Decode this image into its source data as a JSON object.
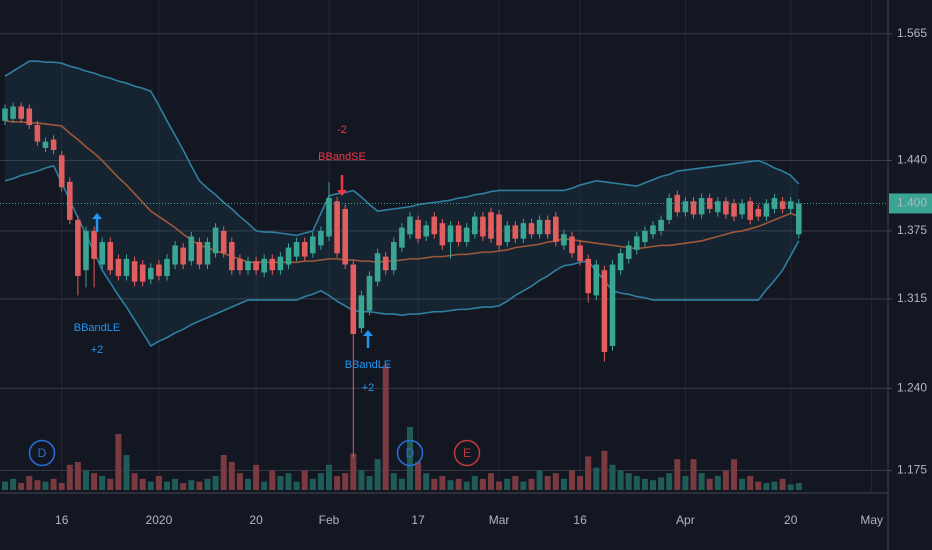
{
  "chart_data": {
    "type": "candlestick",
    "log_scale": true,
    "grid": true,
    "ylim": [
      1.16,
      1.6
    ],
    "yticks": [
      1.175,
      {
        "value": 1.24,
        "label": "1.240"
      },
      1.315,
      1.375,
      {
        "value": 1.44,
        "label": "1.440"
      },
      1.565
    ],
    "y2lim": [
      0,
      100
    ],
    "last_price": {
      "value": 1.4,
      "label": "1.400"
    },
    "up_color": "#3aa592",
    "down_color": "#e25d5d",
    "volume_up_color": "#1f5b57",
    "volume_down_color": "#7a3a40",
    "band_color": "#2f7fa0",
    "basis_color": "#a0583a",
    "categories": [
      null,
      null,
      null,
      null,
      null,
      null,
      null,
      "16",
      null,
      null,
      null,
      null,
      null,
      null,
      null,
      null,
      null,
      null,
      null,
      "2020",
      null,
      null,
      null,
      null,
      null,
      null,
      null,
      null,
      null,
      null,
      null,
      "20",
      null,
      null,
      null,
      null,
      null,
      null,
      null,
      null,
      "Feb",
      null,
      null,
      null,
      null,
      null,
      null,
      null,
      null,
      null,
      null,
      "17",
      null,
      null,
      null,
      null,
      null,
      null,
      null,
      null,
      null,
      "Mar",
      null,
      null,
      null,
      null,
      null,
      null,
      null,
      null,
      null,
      "16",
      null,
      null,
      null,
      null,
      null,
      null,
      null,
      null,
      null,
      null,
      null,
      null,
      "Apr",
      null,
      null,
      null,
      null,
      null,
      null,
      null,
      null,
      null,
      null,
      null,
      null,
      "20",
      null,
      null,
      null,
      null,
      null,
      null,
      null,
      null,
      null,
      "May"
    ],
    "open": [
      1.478,
      1.48,
      1.492,
      1.49,
      1.474,
      1.452,
      1.46,
      1.445,
      1.42,
      1.385,
      1.34,
      1.375,
      1.345,
      1.365,
      1.35,
      1.335,
      1.348,
      1.345,
      1.332,
      1.345,
      1.335,
      1.345,
      1.36,
      1.348,
      1.365,
      1.345,
      1.355,
      1.375,
      1.365,
      1.35,
      1.34,
      1.348,
      1.338,
      1.35,
      1.34,
      1.345,
      1.352,
      1.365,
      1.355,
      1.362,
      1.37,
      1.402,
      1.395,
      1.345,
      1.29,
      1.305,
      1.33,
      1.352,
      1.34,
      1.36,
      1.372,
      1.385,
      1.37,
      1.388,
      1.382,
      1.365,
      1.38,
      1.365,
      1.372,
      1.388,
      1.392,
      1.39,
      1.365,
      1.38,
      1.368,
      1.382,
      1.372,
      1.385,
      1.388,
      1.362,
      1.37,
      1.362,
      1.35,
      1.318,
      1.34,
      1.275,
      1.34,
      1.35,
      1.358,
      1.365,
      1.372,
      1.375,
      1.385,
      1.408,
      1.392,
      1.402,
      1.39,
      1.405,
      1.392,
      1.402,
      1.4,
      1.39,
      1.402,
      1.395,
      1.388,
      1.395,
      1.402,
      1.395,
      1.372,
      null,
      null,
      null,
      null,
      null,
      null,
      null,
      null,
      null
    ],
    "high": [
      1.494,
      1.496,
      1.496,
      1.494,
      1.478,
      1.462,
      1.464,
      1.449,
      1.424,
      1.389,
      1.379,
      1.379,
      1.369,
      1.369,
      1.354,
      1.354,
      1.352,
      1.349,
      1.346,
      1.349,
      1.354,
      1.366,
      1.364,
      1.374,
      1.369,
      1.369,
      1.382,
      1.379,
      1.369,
      1.354,
      1.352,
      1.352,
      1.354,
      1.354,
      1.356,
      1.364,
      1.369,
      1.369,
      1.374,
      1.379,
      1.42,
      1.406,
      1.399,
      1.349,
      1.322,
      1.339,
      1.359,
      1.356,
      1.369,
      1.382,
      1.392,
      1.389,
      1.384,
      1.392,
      1.386,
      1.384,
      1.384,
      1.382,
      1.392,
      1.392,
      1.396,
      1.394,
      1.384,
      1.384,
      1.386,
      1.386,
      1.389,
      1.389,
      1.392,
      1.376,
      1.374,
      1.366,
      1.354,
      1.349,
      1.344,
      1.349,
      1.359,
      1.366,
      1.374,
      1.379,
      1.384,
      1.389,
      1.409,
      1.412,
      1.406,
      1.406,
      1.409,
      1.409,
      1.406,
      1.406,
      1.404,
      1.404,
      1.406,
      1.399,
      1.404,
      1.409,
      1.406,
      1.406,
      1.404,
      null,
      null,
      null,
      null,
      null,
      null,
      null,
      null,
      null
    ],
    "low": [
      1.474,
      1.476,
      1.476,
      1.47,
      1.454,
      1.448,
      1.446,
      1.411,
      1.381,
      1.318,
      1.325,
      1.325,
      1.341,
      1.336,
      1.331,
      1.331,
      1.326,
      1.326,
      1.328,
      1.331,
      1.331,
      1.341,
      1.341,
      1.344,
      1.341,
      1.341,
      1.351,
      1.351,
      1.336,
      1.336,
      1.336,
      1.336,
      1.334,
      1.336,
      1.336,
      1.341,
      1.348,
      1.348,
      1.351,
      1.358,
      1.366,
      1.351,
      1.341,
      1.185,
      1.286,
      1.301,
      1.326,
      1.336,
      1.336,
      1.356,
      1.368,
      1.364,
      1.366,
      1.368,
      1.358,
      1.35,
      1.361,
      1.361,
      1.368,
      1.366,
      1.364,
      1.358,
      1.361,
      1.364,
      1.364,
      1.368,
      1.368,
      1.368,
      1.361,
      1.358,
      1.351,
      1.344,
      1.312,
      1.314,
      1.262,
      1.271,
      1.336,
      1.346,
      1.354,
      1.361,
      1.368,
      1.371,
      1.381,
      1.388,
      1.388,
      1.386,
      1.386,
      1.391,
      1.388,
      1.386,
      1.384,
      1.386,
      1.381,
      1.384,
      1.384,
      1.391,
      1.391,
      1.391,
      1.368,
      null,
      null,
      null,
      null,
      null,
      null,
      null,
      null,
      null
    ],
    "close": [
      1.49,
      1.492,
      1.48,
      1.474,
      1.458,
      1.458,
      1.45,
      1.415,
      1.385,
      1.335,
      1.375,
      1.35,
      1.365,
      1.34,
      1.335,
      1.35,
      1.33,
      1.33,
      1.342,
      1.335,
      1.35,
      1.362,
      1.345,
      1.37,
      1.345,
      1.365,
      1.378,
      1.355,
      1.34,
      1.34,
      1.348,
      1.34,
      1.35,
      1.34,
      1.352,
      1.36,
      1.365,
      1.352,
      1.37,
      1.375,
      1.405,
      1.355,
      1.345,
      1.285,
      1.318,
      1.335,
      1.355,
      1.34,
      1.365,
      1.378,
      1.388,
      1.368,
      1.38,
      1.372,
      1.362,
      1.38,
      1.365,
      1.378,
      1.388,
      1.37,
      1.368,
      1.362,
      1.38,
      1.368,
      1.382,
      1.372,
      1.385,
      1.372,
      1.365,
      1.372,
      1.355,
      1.348,
      1.32,
      1.345,
      1.27,
      1.345,
      1.355,
      1.362,
      1.37,
      1.375,
      1.38,
      1.385,
      1.405,
      1.392,
      1.402,
      1.39,
      1.405,
      1.395,
      1.402,
      1.39,
      1.388,
      1.4,
      1.385,
      1.388,
      1.4,
      1.405,
      1.395,
      1.402,
      1.4,
      null,
      null,
      null,
      null,
      null,
      null,
      null,
      null,
      null
    ],
    "volume": [
      6,
      8,
      5,
      10,
      7,
      6,
      8,
      5,
      18,
      20,
      14,
      12,
      10,
      8,
      40,
      25,
      12,
      8,
      6,
      10,
      6,
      8,
      5,
      7,
      6,
      8,
      10,
      25,
      20,
      12,
      8,
      18,
      6,
      14,
      10,
      12,
      6,
      14,
      8,
      12,
      18,
      10,
      12,
      26,
      14,
      10,
      22,
      89,
      12,
      8,
      45,
      20,
      12,
      8,
      10,
      7,
      8,
      6,
      10,
      8,
      12,
      6,
      8,
      10,
      6,
      8,
      14,
      10,
      12,
      8,
      14,
      10,
      24,
      16,
      28,
      18,
      14,
      12,
      10,
      8,
      7,
      9,
      12,
      22,
      10,
      22,
      12,
      8,
      10,
      14,
      22,
      8,
      10,
      6,
      5,
      6,
      8,
      4,
      5,
      null,
      null,
      null,
      null,
      null,
      null,
      null,
      null,
      null
    ],
    "bands": {
      "upper": [
        1.522,
        1.527,
        1.532,
        1.537,
        1.537,
        1.536,
        1.536,
        1.535,
        1.532,
        1.53,
        1.527,
        1.525,
        1.522,
        1.52,
        1.517,
        1.515,
        1.512,
        1.51,
        1.507,
        1.493,
        1.478,
        1.464,
        1.45,
        1.435,
        1.421,
        1.414,
        1.408,
        1.401,
        1.395,
        1.388,
        1.382,
        1.375,
        1.374,
        1.374,
        1.373,
        1.372,
        1.371,
        1.373,
        1.375,
        1.391,
        1.407,
        1.409,
        1.41,
        1.412,
        1.406,
        1.399,
        1.393,
        1.394,
        1.395,
        1.396,
        1.397,
        1.399,
        1.4,
        1.401,
        1.402,
        1.403,
        1.405,
        1.406,
        1.408,
        1.409,
        1.411,
        1.412,
        1.412,
        1.412,
        1.412,
        1.412,
        1.412,
        1.412,
        1.412,
        1.412,
        1.414,
        1.417,
        1.419,
        1.421,
        1.42,
        1.419,
        1.418,
        1.417,
        1.416,
        1.419,
        1.422,
        1.425,
        1.427,
        1.43,
        1.431,
        1.432,
        1.433,
        1.434,
        1.435,
        1.436,
        1.437,
        1.438,
        1.439,
        1.44,
        1.437,
        1.433,
        1.43,
        1.426,
        1.418,
        null,
        null,
        null,
        null,
        null,
        null,
        null,
        null,
        null
      ],
      "basis": [
        1.478,
        1.477,
        1.477,
        1.476,
        1.476,
        1.475,
        1.474,
        1.473,
        1.466,
        1.46,
        1.453,
        1.447,
        1.44,
        1.432,
        1.424,
        1.417,
        1.409,
        1.401,
        1.393,
        1.388,
        1.383,
        1.378,
        1.372,
        1.367,
        1.362,
        1.36,
        1.357,
        1.355,
        1.352,
        1.35,
        1.347,
        1.347,
        1.347,
        1.347,
        1.347,
        1.347,
        1.347,
        1.348,
        1.348,
        1.349,
        1.35,
        1.35,
        1.349,
        1.349,
        1.348,
        1.348,
        1.347,
        1.348,
        1.348,
        1.349,
        1.35,
        1.35,
        1.351,
        1.352,
        1.352,
        1.353,
        1.354,
        1.354,
        1.355,
        1.356,
        1.356,
        1.357,
        1.358,
        1.36,
        1.361,
        1.362,
        1.363,
        1.365,
        1.366,
        1.368,
        1.367,
        1.366,
        1.365,
        1.364,
        1.363,
        1.362,
        1.361,
        1.36,
        1.359,
        1.36,
        1.361,
        1.362,
        1.362,
        1.363,
        1.364,
        1.365,
        1.366,
        1.368,
        1.37,
        1.372,
        1.374,
        1.375,
        1.377,
        1.379,
        1.382,
        1.385,
        1.388,
        1.391,
        1.388,
        null,
        null,
        null,
        null,
        null,
        null,
        null,
        null,
        null
      ],
      "lower": [
        1.421,
        1.423,
        1.426,
        1.428,
        1.43,
        1.433,
        1.435,
        1.419,
        1.403,
        1.387,
        1.372,
        1.356,
        1.34,
        1.329,
        1.318,
        1.308,
        1.297,
        1.286,
        1.275,
        1.279,
        1.282,
        1.286,
        1.289,
        1.293,
        1.296,
        1.299,
        1.302,
        1.305,
        1.308,
        1.311,
        1.314,
        1.314,
        1.314,
        1.314,
        1.314,
        1.314,
        1.314,
        1.317,
        1.319,
        1.322,
        1.318,
        1.313,
        1.309,
        1.305,
        1.304,
        1.304,
        1.303,
        1.302,
        1.302,
        1.301,
        1.302,
        1.302,
        1.303,
        1.304,
        1.304,
        1.305,
        1.306,
        1.306,
        1.307,
        1.308,
        1.308,
        1.309,
        1.313,
        1.318,
        1.322,
        1.326,
        1.331,
        1.335,
        1.34,
        1.344,
        1.345,
        1.347,
        1.348,
        1.339,
        1.331,
        1.322,
        1.32,
        1.319,
        1.317,
        1.316,
        1.314,
        1.314,
        1.314,
        1.314,
        1.314,
        1.314,
        1.314,
        1.314,
        1.314,
        1.314,
        1.314,
        1.314,
        1.314,
        1.314,
        1.323,
        1.331,
        1.34,
        1.353,
        1.366,
        null,
        null,
        null,
        null,
        null,
        null,
        null,
        null,
        null
      ]
    },
    "signals": [
      {
        "text": "BBandLE",
        "qty": "+2"
      },
      {
        "text": "BBandLE",
        "qty": "+2"
      },
      {
        "text": "BBandSE",
        "qty": "-2"
      }
    ],
    "events": [
      "D",
      "D",
      "E"
    ]
  }
}
